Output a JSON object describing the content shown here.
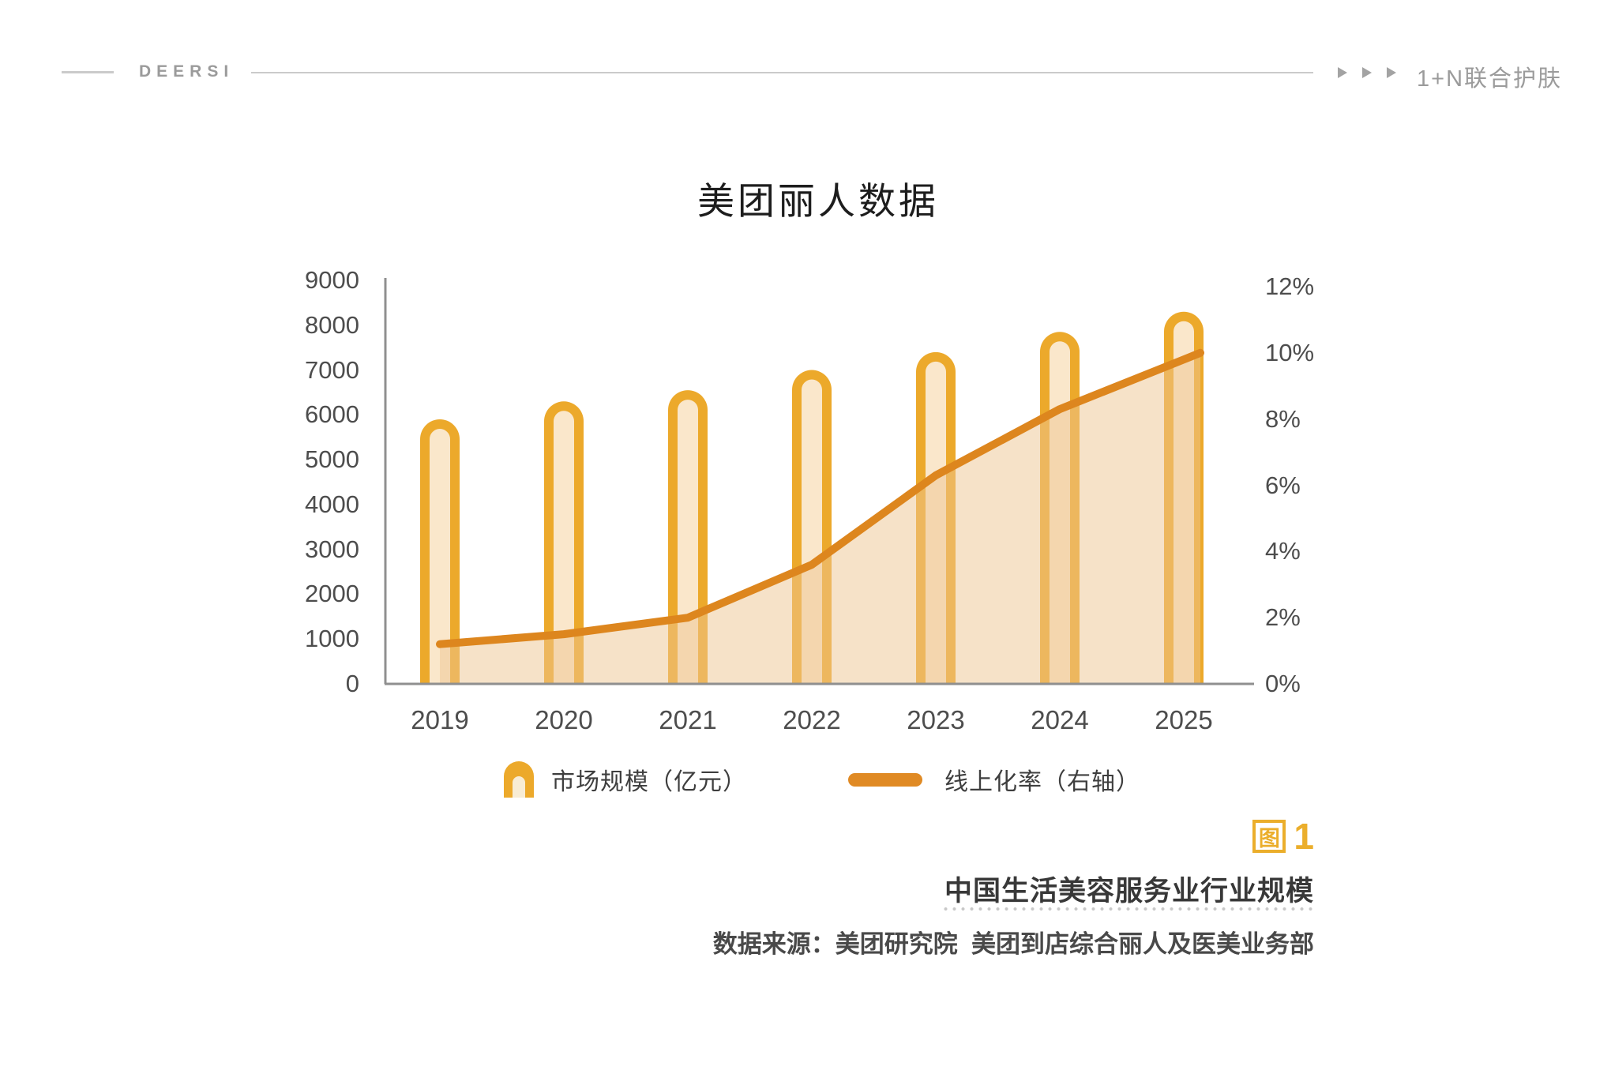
{
  "header": {
    "brand": "DEERSI",
    "section_label": "1+N联合护肤"
  },
  "chart": {
    "title": "美团丽人数据"
  },
  "chart_data": {
    "type": "bar+line combo",
    "title": "美团丽人数据",
    "categories": [
      "2019",
      "2020",
      "2021",
      "2022",
      "2023",
      "2024",
      "2025"
    ],
    "series": [
      {
        "name": "市场规模（亿元）",
        "type": "bar",
        "axis": "left",
        "values": [
          5900,
          6300,
          6550,
          7000,
          7400,
          7850,
          8300
        ]
      },
      {
        "name": "线上化率（右轴）",
        "type": "line",
        "axis": "right",
        "unit": "%",
        "values": [
          1.2,
          1.5,
          2.0,
          3.6,
          6.3,
          8.3,
          9.8
        ]
      }
    ],
    "left_axis": {
      "min": 0,
      "max": 9000,
      "tick_step": 1000,
      "tick_labels": [
        "0",
        "1000",
        "2000",
        "3000",
        "4000",
        "5000",
        "6000",
        "7000",
        "8000",
        "9000"
      ]
    },
    "right_axis": {
      "min": 0,
      "max": 12,
      "tick_step": 2,
      "tick_labels": [
        "0%",
        "2%",
        "4%",
        "6%",
        "8%",
        "10%",
        "12%"
      ]
    },
    "grid": "off",
    "legend_position": "bottom",
    "colors": {
      "bar_outer": "#eca92b",
      "bar_inner": "#fae7cb",
      "line": "#dd861e",
      "area_fill": "rgba(238,197,145,0.5)",
      "axis": "#8f8f8f"
    }
  },
  "legend": {
    "items": [
      {
        "label": "市场规模（亿元）",
        "marker": "bar-capsule"
      },
      {
        "label": "线上化率（右轴）",
        "marker": "line-segment"
      }
    ]
  },
  "figure": {
    "badge_text": "图",
    "figure_number": "1",
    "caption": "中国生活美容服务业行业规模",
    "source": "数据来源：美团研究院  美团到店综合丽人及医美业务部"
  }
}
